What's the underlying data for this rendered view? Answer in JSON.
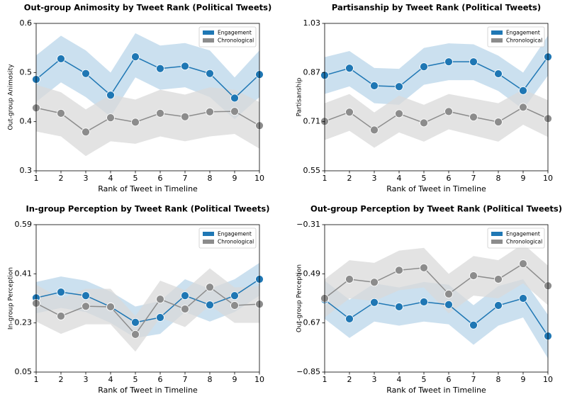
{
  "chart_data": [
    {
      "type": "line",
      "title": "Out-group Animosity by Tweet Rank (Political Tweets)",
      "x_label": "Rank of Tweet in Timeline",
      "y_label": "Out-group Animosity",
      "x": [
        1,
        2,
        3,
        4,
        5,
        6,
        7,
        8,
        9,
        10
      ],
      "xlim": [
        1,
        10
      ],
      "xticks": [
        1,
        2,
        3,
        4,
        5,
        6,
        7,
        8,
        9,
        10
      ],
      "ylim": [
        0.3,
        0.6
      ],
      "yticks": [
        0.3,
        0.4,
        0.5,
        0.6
      ],
      "legend": "upper right",
      "series": [
        {
          "name": "Engagement",
          "color": "#1f77b4",
          "band_color": "#b9d5ea",
          "values": [
            0.486,
            0.528,
            0.498,
            0.454,
            0.532,
            0.508,
            0.513,
            0.498,
            0.448,
            0.496
          ],
          "upper": [
            0.535,
            0.575,
            0.545,
            0.5,
            0.58,
            0.555,
            0.56,
            0.545,
            0.49,
            0.545
          ],
          "lower": [
            0.44,
            0.48,
            0.45,
            0.41,
            0.49,
            0.465,
            0.47,
            0.45,
            0.405,
            0.45
          ]
        },
        {
          "name": "Chronological",
          "color": "#8c8c8c",
          "band_color": "#d9d9d9",
          "values": [
            0.428,
            0.417,
            0.379,
            0.408,
            0.399,
            0.417,
            0.41,
            0.42,
            0.421,
            0.392
          ],
          "upper": [
            0.475,
            0.46,
            0.425,
            0.455,
            0.445,
            0.465,
            0.455,
            0.47,
            0.465,
            0.44
          ],
          "lower": [
            0.38,
            0.37,
            0.33,
            0.36,
            0.355,
            0.37,
            0.36,
            0.37,
            0.375,
            0.345
          ]
        }
      ]
    },
    {
      "type": "line",
      "title": "Partisanship by Tweet Rank (Political Tweets)",
      "x_label": "Rank of Tweet in Timeline",
      "y_label": "Partisanship",
      "x": [
        1,
        2,
        3,
        4,
        5,
        6,
        7,
        8,
        9,
        10
      ],
      "xlim": [
        1,
        10
      ],
      "xticks": [
        1,
        2,
        3,
        4,
        5,
        6,
        7,
        8,
        9,
        10
      ],
      "ylim": [
        0.55,
        1.03
      ],
      "yticks": [
        0.55,
        0.71,
        0.87,
        1.03
      ],
      "legend": "upper right",
      "series": [
        {
          "name": "Engagement",
          "color": "#1f77b4",
          "band_color": "#b9d5ea",
          "values": [
            0.861,
            0.884,
            0.827,
            0.824,
            0.889,
            0.905,
            0.905,
            0.866,
            0.811,
            0.921
          ],
          "upper": [
            0.92,
            0.94,
            0.885,
            0.882,
            0.95,
            0.965,
            0.962,
            0.925,
            0.87,
            0.99
          ],
          "lower": [
            0.8,
            0.825,
            0.77,
            0.765,
            0.83,
            0.845,
            0.845,
            0.81,
            0.75,
            0.86
          ]
        },
        {
          "name": "Chronological",
          "color": "#8c8c8c",
          "band_color": "#d9d9d9",
          "values": [
            0.711,
            0.741,
            0.683,
            0.736,
            0.706,
            0.743,
            0.725,
            0.709,
            0.757,
            0.72
          ],
          "upper": [
            0.77,
            0.8,
            0.74,
            0.795,
            0.765,
            0.8,
            0.785,
            0.77,
            0.815,
            0.78
          ],
          "lower": [
            0.65,
            0.68,
            0.625,
            0.675,
            0.645,
            0.685,
            0.665,
            0.645,
            0.7,
            0.66
          ]
        }
      ]
    },
    {
      "type": "line",
      "title": "In-group Perception by Tweet Rank (Political Tweets)",
      "x_label": "Rank of Tweet in Timeline",
      "y_label": "In-group Perception",
      "x": [
        1,
        2,
        3,
        4,
        5,
        6,
        7,
        8,
        9,
        10
      ],
      "xlim": [
        1,
        10
      ],
      "xticks": [
        1,
        2,
        3,
        4,
        5,
        6,
        7,
        8,
        9,
        10
      ],
      "ylim": [
        0.05,
        0.59
      ],
      "yticks": [
        0.05,
        0.23,
        0.41,
        0.59
      ],
      "legend": "upper right",
      "series": [
        {
          "name": "Engagement",
          "color": "#1f77b4",
          "band_color": "#b9d5ea",
          "values": [
            0.322,
            0.343,
            0.33,
            0.289,
            0.232,
            0.25,
            0.33,
            0.296,
            0.33,
            0.39
          ],
          "upper": [
            0.38,
            0.4,
            0.385,
            0.345,
            0.29,
            0.31,
            0.39,
            0.355,
            0.39,
            0.45
          ],
          "lower": [
            0.265,
            0.285,
            0.27,
            0.23,
            0.175,
            0.19,
            0.27,
            0.235,
            0.27,
            0.33
          ]
        },
        {
          "name": "Chronological",
          "color": "#8c8c8c",
          "band_color": "#d9d9d9",
          "values": [
            0.302,
            0.255,
            0.291,
            0.289,
            0.188,
            0.317,
            0.281,
            0.361,
            0.294,
            0.299
          ],
          "upper": [
            0.37,
            0.32,
            0.355,
            0.355,
            0.255,
            0.385,
            0.35,
            0.43,
            0.36,
            0.365
          ],
          "lower": [
            0.235,
            0.19,
            0.225,
            0.225,
            0.125,
            0.25,
            0.215,
            0.295,
            0.23,
            0.23
          ]
        }
      ]
    },
    {
      "type": "line",
      "title": "Out-group Perception by Tweet Rank (Political Tweets)",
      "x_label": "Rank of Tweet in Timeline",
      "y_label": "Out-group Perception",
      "x": [
        1,
        2,
        3,
        4,
        5,
        6,
        7,
        8,
        9,
        10
      ],
      "xlim": [
        1,
        10
      ],
      "xticks": [
        1,
        2,
        3,
        4,
        5,
        6,
        7,
        8,
        9,
        10
      ],
      "ylim": [
        -0.85,
        -0.31
      ],
      "yticks": [
        {
          "value": -0.85,
          "label": "−0.85"
        },
        {
          "value": -0.67,
          "label": "−0.67"
        },
        {
          "value": -0.49,
          "label": "−0.49"
        },
        {
          "value": -0.31,
          "label": "−0.31"
        }
      ],
      "legend": "upper right",
      "series": [
        {
          "name": "Engagement",
          "color": "#1f77b4",
          "band_color": "#b9d5ea",
          "values": [
            -0.585,
            -0.655,
            -0.595,
            -0.611,
            -0.593,
            -0.603,
            -0.678,
            -0.606,
            -0.58,
            -0.718
          ],
          "upper": [
            -0.515,
            -0.585,
            -0.525,
            -0.54,
            -0.52,
            -0.53,
            -0.605,
            -0.535,
            -0.51,
            -0.64
          ],
          "lower": [
            -0.655,
            -0.725,
            -0.665,
            -0.68,
            -0.665,
            -0.675,
            -0.75,
            -0.68,
            -0.65,
            -0.8
          ]
        },
        {
          "name": "Chronological",
          "color": "#8c8c8c",
          "band_color": "#d9d9d9",
          "values": [
            -0.58,
            -0.51,
            -0.521,
            -0.477,
            -0.468,
            -0.564,
            -0.497,
            -0.51,
            -0.453,
            -0.534
          ],
          "upper": [
            -0.51,
            -0.44,
            -0.45,
            -0.405,
            -0.395,
            -0.49,
            -0.425,
            -0.44,
            -0.38,
            -0.46
          ],
          "lower": [
            -0.65,
            -0.58,
            -0.59,
            -0.55,
            -0.54,
            -0.635,
            -0.57,
            -0.58,
            -0.525,
            -0.605
          ]
        }
      ]
    }
  ]
}
